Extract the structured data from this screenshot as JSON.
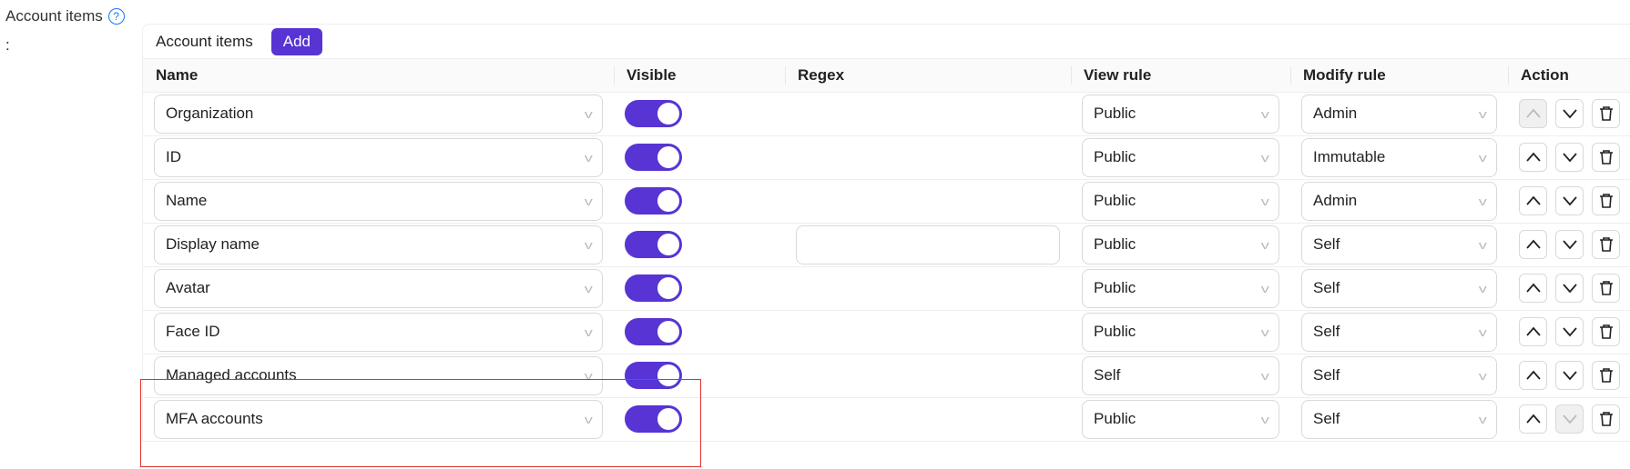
{
  "field_label": "Account items",
  "field_colon": ":",
  "help_icon": "question-circle-icon",
  "card": {
    "title": "Account items",
    "add_label": "Add"
  },
  "columns": [
    "Name",
    "Visible",
    "Regex",
    "View rule",
    "Modify rule",
    "Action"
  ],
  "rows": [
    {
      "name": "Organization",
      "visible": true,
      "regex": null,
      "view_rule": "Public",
      "modify_rule": "Admin",
      "up_disabled": true,
      "down_disabled": false
    },
    {
      "name": "ID",
      "visible": true,
      "regex": null,
      "view_rule": "Public",
      "modify_rule": "Immutable",
      "up_disabled": false,
      "down_disabled": false
    },
    {
      "name": "Name",
      "visible": true,
      "regex": null,
      "view_rule": "Public",
      "modify_rule": "Admin",
      "up_disabled": false,
      "down_disabled": false
    },
    {
      "name": "Display name",
      "visible": true,
      "regex": "",
      "view_rule": "Public",
      "modify_rule": "Self",
      "up_disabled": false,
      "down_disabled": false
    },
    {
      "name": "Avatar",
      "visible": true,
      "regex": null,
      "view_rule": "Public",
      "modify_rule": "Self",
      "up_disabled": false,
      "down_disabled": false
    },
    {
      "name": "Face ID",
      "visible": true,
      "regex": null,
      "view_rule": "Public",
      "modify_rule": "Self",
      "up_disabled": false,
      "down_disabled": false
    },
    {
      "name": "Managed accounts",
      "visible": true,
      "regex": null,
      "view_rule": "Self",
      "modify_rule": "Self",
      "up_disabled": false,
      "down_disabled": false
    },
    {
      "name": "MFA accounts",
      "visible": true,
      "regex": null,
      "view_rule": "Public",
      "modify_rule": "Self",
      "up_disabled": false,
      "down_disabled": true
    }
  ],
  "colors": {
    "accent": "#5734d3",
    "highlight_box": "#e03030"
  }
}
